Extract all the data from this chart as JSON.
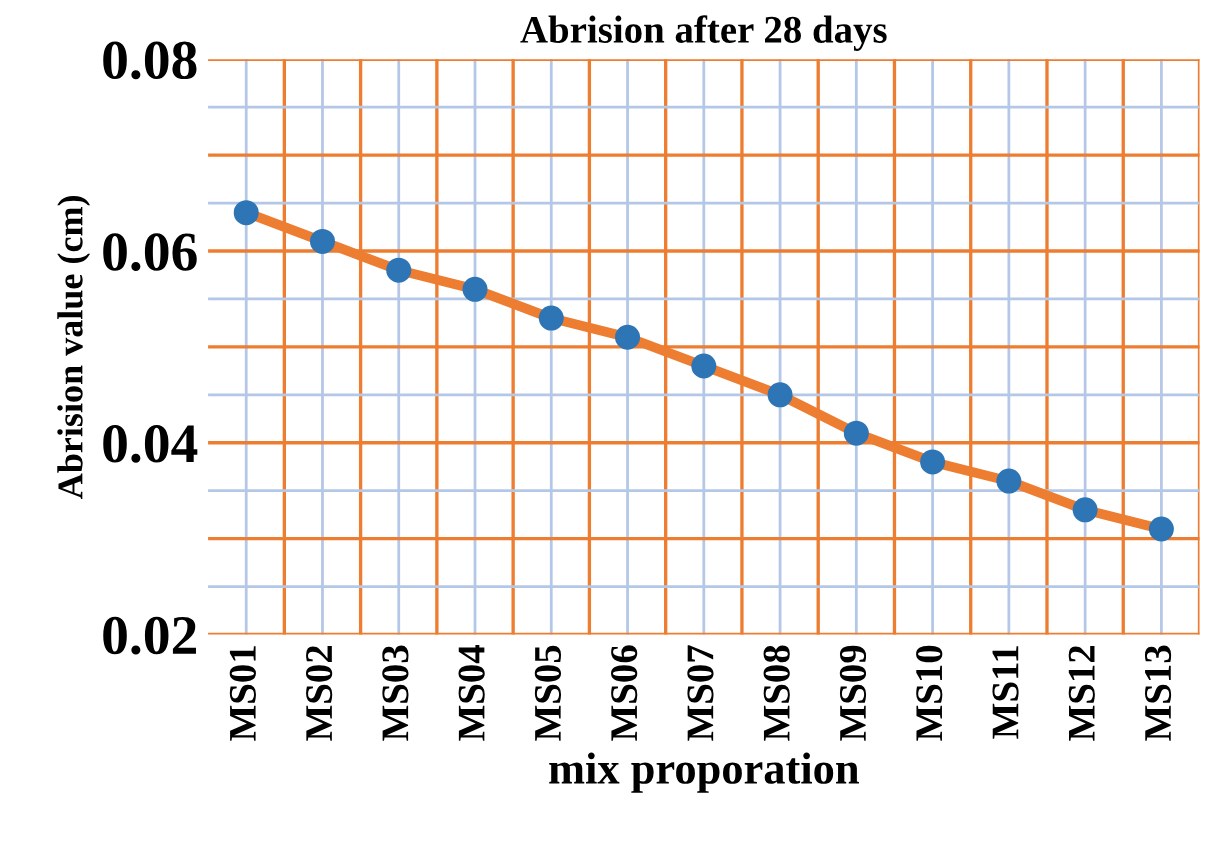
{
  "chart_data": {
    "type": "line",
    "title": "Abrision after 28 days",
    "xlabel": "mix proporation",
    "ylabel": "Abrision value (cm)",
    "categories": [
      "MS01",
      "MS02",
      "MS03",
      "MS04",
      "MS05",
      "MS06",
      "MS07",
      "MS08",
      "MS09",
      "MS10",
      "MS11",
      "MS12",
      "MS13"
    ],
    "series": [
      {
        "color": "#ed7d31",
        "colors": [
          "#2e75b6",
          "#2e75b6",
          "#2e75b6",
          "#2e75b6",
          "#2e75b6",
          "#2e75b6",
          "#2e75b6",
          "#2e75b6",
          "#2e75b6",
          "#2e75b6",
          "#2e75b6",
          "#2e75b6",
          "#2e75b6"
        ],
        "values": [
          0.064,
          0.061,
          0.058,
          0.056,
          0.053,
          0.051,
          0.048,
          0.045,
          0.041,
          0.038,
          0.036,
          0.033,
          0.031
        ]
      }
    ],
    "ylim": [
      0.02,
      0.08
    ],
    "yticks": [
      0.02,
      {
        "value": 0.03,
        "label": null
      },
      0.04,
      {
        "value": 0.05,
        "label": null
      },
      0.06,
      {
        "value": 0.07,
        "label": null
      },
      0.08
    ],
    "grid": true,
    "marker": "circle",
    "line_style": "solid",
    "legend": false
  }
}
